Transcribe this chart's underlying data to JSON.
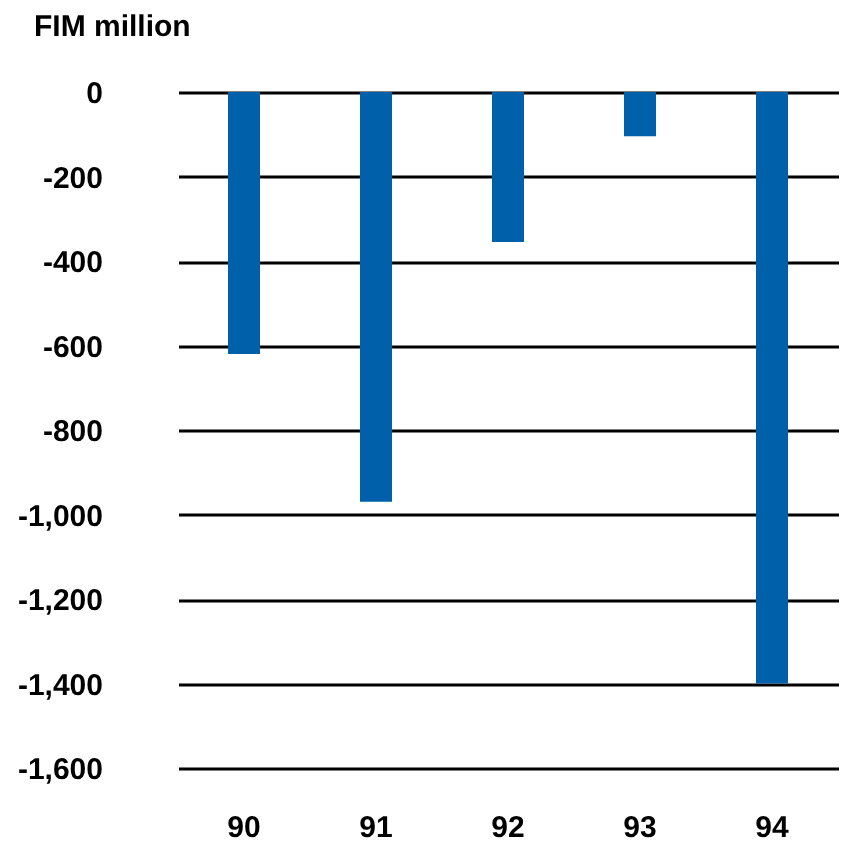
{
  "chart_data": {
    "type": "bar",
    "title": "FIM million",
    "categories": [
      "90",
      "91",
      "92",
      "93",
      "94"
    ],
    "values": [
      -620,
      -970,
      -355,
      -105,
      -1400
    ],
    "color": "#0060aa",
    "ylim": [
      -1600,
      0
    ],
    "yticks": [
      0,
      {
        "value": -200,
        "label": "-200"
      },
      {
        "value": -400,
        "label": "-400"
      },
      {
        "value": -600,
        "label": "-600"
      },
      {
        "value": -800,
        "label": "-800"
      },
      {
        "value": -1000,
        "label": "-1,000"
      },
      {
        "value": -1200,
        "label": "-1,200"
      },
      {
        "value": -1400,
        "label": "-1,400"
      },
      {
        "value": -1600,
        "label": "-1,600"
      }
    ],
    "grid": "y"
  }
}
